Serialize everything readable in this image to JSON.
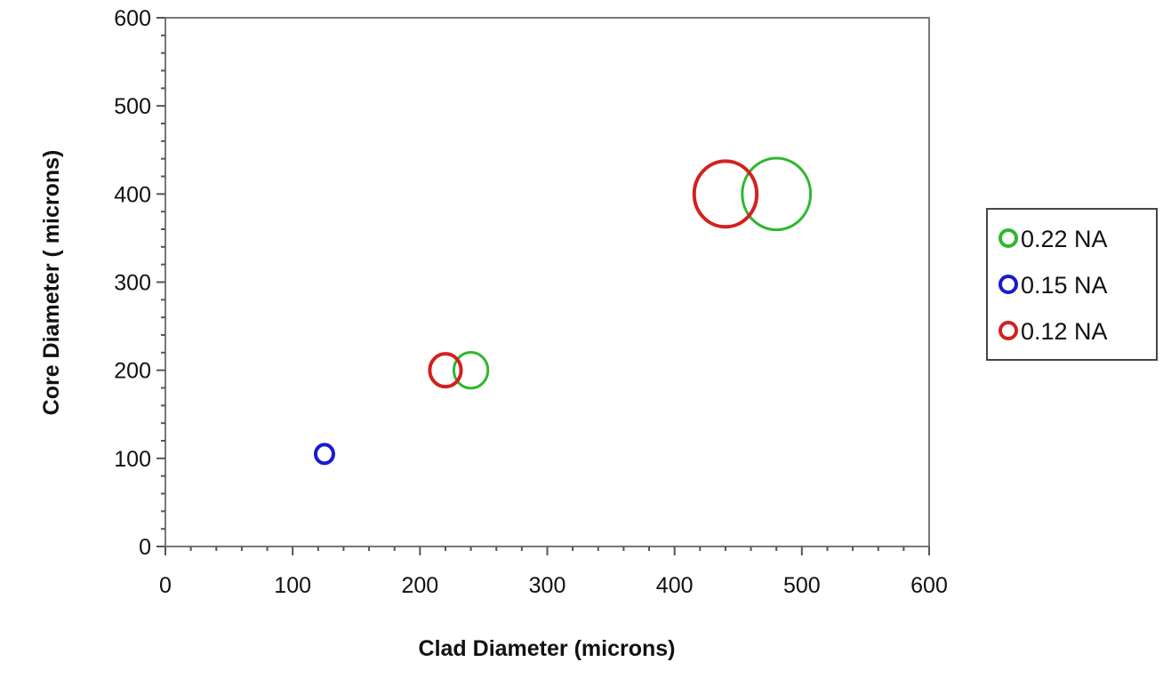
{
  "chart_data": {
    "type": "scatter",
    "title": "",
    "xlabel": "Clad Diameter (microns)",
    "ylabel": "Core Diameter ( microns)",
    "xlim": [
      0,
      600
    ],
    "ylim": [
      0,
      600
    ],
    "xticks": [
      "0",
      "100",
      "200",
      "300",
      "400",
      "500",
      "600"
    ],
    "yticks": [
      "0",
      "100",
      "200",
      "300",
      "400",
      "500",
      "600"
    ],
    "grid": false,
    "legend_position": "right",
    "marker": "open-circle",
    "marker_size_scales_with": "clad diameter",
    "series": [
      {
        "name": "0.22 NA",
        "color": "#2db82d",
        "points": [
          [
            125,
            105
          ],
          [
            220,
            200
          ],
          [
            240,
            200
          ],
          [
            440,
            400
          ],
          [
            480,
            400
          ]
        ]
      },
      {
        "name": "0.15 NA",
        "color": "#1a1acc",
        "points": [
          [
            125,
            105
          ]
        ]
      },
      {
        "name": "0.12 NA",
        "color": "#d42020",
        "points": [
          [
            220,
            200
          ],
          [
            440,
            400
          ]
        ]
      }
    ]
  }
}
